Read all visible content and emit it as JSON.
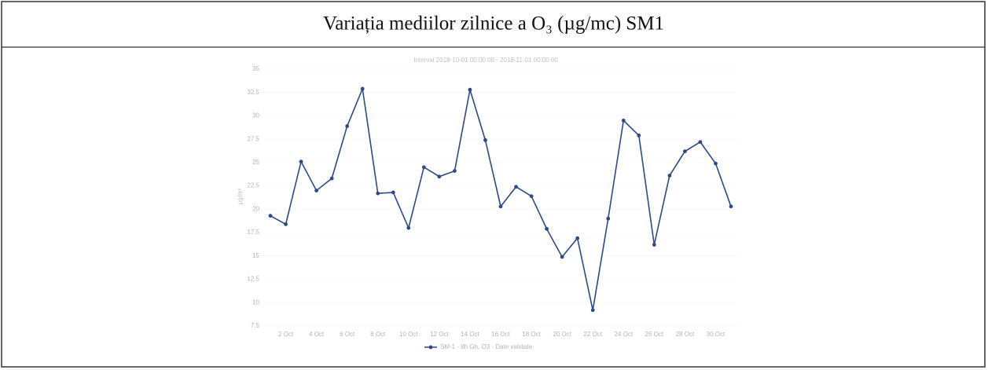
{
  "chart_data": {
    "type": "line",
    "title": "Variația mediilor zilnice a O₃ (µg/mc) SM1",
    "subtitle": "Interval 2018-10-01 00:00:00 - 2018-11-01 00:00:00",
    "y_label": "µg/m³",
    "categories": [
      null,
      "2 Oct",
      null,
      "4 Oct",
      null,
      "6 Oct",
      null,
      "8 Oct",
      null,
      "10 Oct",
      null,
      "12 Oct",
      null,
      "14 Oct",
      null,
      "16 Oct",
      null,
      "18 Oct",
      null,
      "20 Oct",
      null,
      "22 Oct",
      null,
      "24 Oct",
      null,
      "26 Oct",
      null,
      "28 Oct",
      null,
      "30 Oct",
      null
    ],
    "series": [
      {
        "name": "SM-1 - 8h Gh. O3 - Date validate",
        "color": "#2b4a8c",
        "values": [
          19.3,
          18.4,
          25.1,
          22.0,
          23.3,
          28.9,
          32.9,
          21.7,
          21.8,
          18.0,
          24.5,
          23.5,
          24.1,
          32.8,
          27.4,
          20.3,
          22.4,
          21.4,
          17.9,
          14.9,
          16.9,
          9.2,
          19.0,
          29.5,
          27.9,
          16.2,
          23.6,
          26.2,
          27.2,
          24.9,
          20.3
        ]
      }
    ],
    "ylim": [
      7.5,
      35
    ],
    "yticks": [
      7.5,
      10,
      12.5,
      15,
      17.5,
      20,
      22.5,
      25,
      27.5,
      30,
      32.5,
      35
    ],
    "legend": "bottom"
  }
}
